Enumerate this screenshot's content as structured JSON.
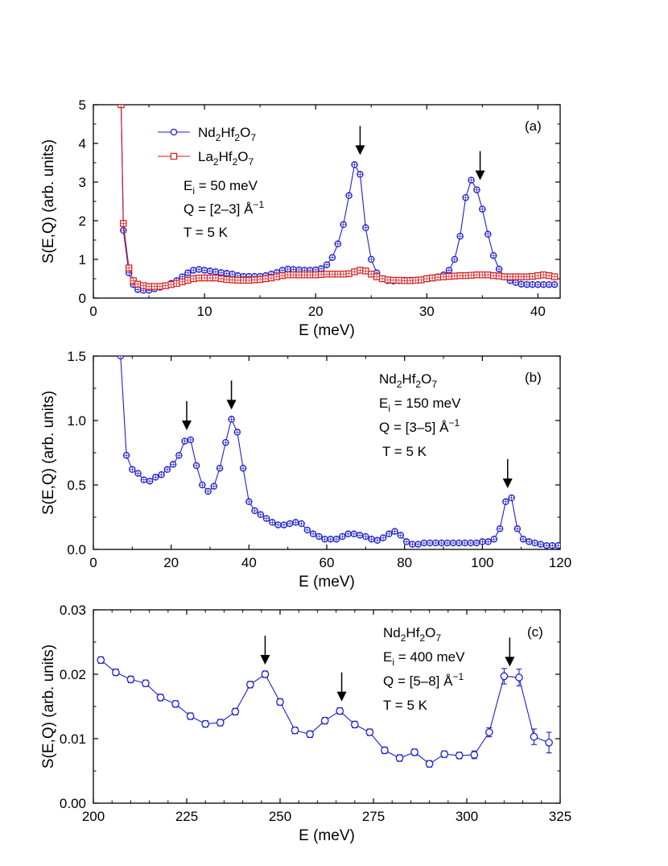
{
  "chart_data": [
    {
      "type": "line",
      "panel_label": "(a)",
      "xlabel": "E (meV)",
      "ylabel": "S(E,Q) (arb. units)",
      "xlim": [
        0,
        42
      ],
      "ylim": [
        0,
        5
      ],
      "xticks": [
        0,
        10,
        20,
        30,
        40
      ],
      "yticks": [
        0,
        1,
        2,
        3,
        4,
        5
      ],
      "xtick_labels": [
        "0",
        "10",
        "20",
        "30",
        "40"
      ],
      "ytick_labels": [
        "0",
        "1",
        "2",
        "3",
        "4",
        "5"
      ],
      "grid": false,
      "legend_position": "top-left",
      "annotation_lines": [
        {
          "base": "E",
          "sub": "i",
          "rest": " = 50 meV"
        },
        {
          "base": "Q = [2–3] Å",
          "sup": "−1"
        },
        {
          "base": "T = 5 K"
        }
      ],
      "arrows_at": [
        24.0,
        34.8
      ],
      "series": [
        {
          "name": "Nd2Hf2O7",
          "name_parts": [
            "Nd",
            "2",
            "Hf",
            "2",
            "O",
            "7"
          ],
          "color": "#1f1fcf",
          "marker": "circle",
          "x": [
            2.5,
            2.7,
            3.2,
            3.6,
            4.0,
            4.5,
            5.0,
            5.5,
            6.0,
            6.5,
            7.0,
            7.5,
            8.0,
            8.5,
            9.0,
            9.5,
            10.0,
            10.5,
            11.0,
            11.5,
            12.0,
            12.5,
            13.0,
            13.5,
            14.0,
            14.5,
            15.0,
            15.5,
            16.0,
            16.5,
            17.0,
            17.5,
            18.0,
            18.5,
            19.0,
            19.5,
            20.0,
            20.5,
            21.0,
            21.5,
            22.0,
            22.5,
            23.0,
            23.5,
            24.0,
            24.5,
            25.0,
            25.5,
            26.0,
            26.5,
            27.0,
            27.5,
            28.0,
            28.5,
            29.0,
            29.5,
            30.0,
            30.5,
            31.0,
            31.5,
            32.0,
            32.5,
            33.0,
            33.5,
            34.0,
            34.5,
            35.0,
            35.5,
            36.0,
            36.5,
            37.0,
            37.5,
            38.0,
            38.5,
            39.0,
            39.5,
            40.0,
            40.5,
            41.0,
            41.5
          ],
          "values": [
            5.0,
            1.75,
            0.65,
            0.35,
            0.22,
            0.2,
            0.2,
            0.24,
            0.28,
            0.32,
            0.38,
            0.45,
            0.55,
            0.65,
            0.72,
            0.74,
            0.72,
            0.7,
            0.68,
            0.66,
            0.64,
            0.62,
            0.58,
            0.56,
            0.56,
            0.56,
            0.56,
            0.58,
            0.62,
            0.66,
            0.72,
            0.75,
            0.74,
            0.73,
            0.72,
            0.72,
            0.73,
            0.76,
            0.86,
            1.05,
            1.4,
            1.9,
            2.65,
            3.45,
            3.2,
            1.82,
            1.0,
            0.65,
            0.5,
            0.45,
            0.44,
            0.45,
            0.46,
            0.46,
            0.46,
            0.47,
            0.5,
            0.52,
            0.55,
            0.6,
            0.72,
            1.0,
            1.6,
            2.6,
            3.05,
            2.8,
            2.3,
            1.65,
            1.1,
            0.75,
            0.55,
            0.45,
            0.4,
            0.36,
            0.35,
            0.35,
            0.35,
            0.35,
            0.35,
            0.35
          ]
        },
        {
          "name": "La2Hf2O7",
          "name_parts": [
            "La",
            "2",
            "Hf",
            "2",
            "O",
            "7"
          ],
          "color": "#d91a1a",
          "marker": "square",
          "x": [
            2.5,
            2.7,
            3.2,
            3.6,
            4.0,
            4.5,
            5.0,
            5.5,
            6.0,
            6.5,
            7.0,
            7.5,
            8.0,
            8.5,
            9.0,
            9.5,
            10.0,
            10.5,
            11.0,
            11.5,
            12.0,
            12.5,
            13.0,
            13.5,
            14.0,
            14.5,
            15.0,
            15.5,
            16.0,
            16.5,
            17.0,
            17.5,
            18.0,
            18.5,
            19.0,
            19.5,
            20.0,
            20.5,
            21.0,
            21.5,
            22.0,
            22.5,
            23.0,
            23.5,
            24.0,
            24.5,
            25.0,
            25.5,
            26.0,
            26.5,
            27.0,
            27.5,
            28.0,
            28.5,
            29.0,
            29.5,
            30.0,
            30.5,
            31.0,
            31.5,
            32.0,
            32.5,
            33.0,
            33.5,
            34.0,
            34.5,
            35.0,
            35.5,
            36.0,
            36.5,
            37.0,
            37.5,
            38.0,
            38.5,
            39.0,
            39.5,
            40.0,
            40.5,
            41.0,
            41.5
          ],
          "values": [
            5.0,
            1.93,
            0.78,
            0.45,
            0.36,
            0.32,
            0.3,
            0.3,
            0.3,
            0.32,
            0.35,
            0.38,
            0.42,
            0.46,
            0.5,
            0.52,
            0.52,
            0.52,
            0.52,
            0.5,
            0.48,
            0.47,
            0.46,
            0.46,
            0.46,
            0.47,
            0.48,
            0.5,
            0.52,
            0.55,
            0.58,
            0.6,
            0.6,
            0.6,
            0.6,
            0.6,
            0.6,
            0.61,
            0.62,
            0.62,
            0.62,
            0.62,
            0.63,
            0.68,
            0.72,
            0.7,
            0.62,
            0.55,
            0.5,
            0.47,
            0.46,
            0.46,
            0.45,
            0.45,
            0.46,
            0.47,
            0.5,
            0.52,
            0.54,
            0.55,
            0.56,
            0.57,
            0.58,
            0.58,
            0.59,
            0.6,
            0.6,
            0.6,
            0.58,
            0.57,
            0.55,
            0.55,
            0.55,
            0.55,
            0.55,
            0.56,
            0.58,
            0.6,
            0.58,
            0.55
          ]
        }
      ]
    },
    {
      "type": "line",
      "panel_label": "(b)",
      "xlabel": "E (meV)",
      "ylabel": "S(E,Q) (arb. units)",
      "xlim": [
        0,
        120
      ],
      "ylim": [
        0,
        1.5
      ],
      "xticks": [
        0,
        20,
        40,
        60,
        80,
        100,
        120
      ],
      "yticks": [
        0,
        0.5,
        1.0,
        1.5
      ],
      "xtick_labels": [
        "0",
        "20",
        "40",
        "60",
        "80",
        "100",
        "120"
      ],
      "ytick_labels": [
        "0.0",
        "0.5",
        "1.0",
        "1.5"
      ],
      "grid": false,
      "annotation_title_parts": [
        "Nd",
        "2",
        "Hf",
        "2",
        "O",
        "7"
      ],
      "annotation_lines": [
        {
          "base": "E",
          "sub": "i",
          "rest": " = 150 meV"
        },
        {
          "base": "Q = [3–5] Å",
          "sup": "−1"
        },
        {
          "base": "T = 5 K"
        }
      ],
      "arrows_at": [
        24.0,
        35.5,
        106.5
      ],
      "series": [
        {
          "name": "Nd2Hf2O7",
          "color": "#1f1fcf",
          "marker": "circle",
          "x": [
            7.0,
            8.5,
            10.0,
            11.5,
            13.0,
            14.5,
            16.0,
            17.5,
            19.0,
            20.5,
            22.0,
            23.5,
            25.0,
            26.5,
            28.0,
            29.5,
            31.0,
            32.5,
            34.0,
            35.5,
            37.0,
            38.5,
            40.0,
            41.5,
            43.0,
            44.5,
            46.0,
            47.5,
            49.0,
            50.5,
            52.0,
            53.5,
            55.0,
            56.5,
            58.0,
            59.5,
            61.0,
            62.5,
            64.0,
            65.5,
            67.0,
            68.5,
            70.0,
            71.5,
            73.0,
            74.5,
            76.0,
            77.5,
            79.0,
            80.5,
            82.0,
            83.5,
            85.0,
            86.5,
            88.0,
            89.5,
            91.0,
            92.5,
            94.0,
            95.5,
            97.0,
            98.5,
            100.0,
            101.5,
            103.0,
            104.5,
            106.0,
            107.5,
            109.0,
            110.5,
            112.0,
            113.5,
            115.0,
            116.5,
            118.0,
            119.5
          ],
          "values": [
            1.5,
            0.73,
            0.62,
            0.59,
            0.54,
            0.53,
            0.56,
            0.58,
            0.62,
            0.66,
            0.73,
            0.84,
            0.85,
            0.65,
            0.5,
            0.45,
            0.49,
            0.63,
            0.83,
            1.01,
            0.91,
            0.63,
            0.37,
            0.3,
            0.27,
            0.24,
            0.21,
            0.19,
            0.19,
            0.2,
            0.21,
            0.2,
            0.15,
            0.12,
            0.1,
            0.08,
            0.08,
            0.08,
            0.1,
            0.12,
            0.12,
            0.11,
            0.1,
            0.08,
            0.07,
            0.09,
            0.12,
            0.14,
            0.11,
            0.06,
            0.04,
            0.04,
            0.05,
            0.05,
            0.05,
            0.05,
            0.05,
            0.05,
            0.05,
            0.05,
            0.05,
            0.05,
            0.06,
            0.06,
            0.08,
            0.16,
            0.37,
            0.4,
            0.16,
            0.08,
            0.06,
            0.05,
            0.04,
            0.03,
            0.03,
            0.03
          ]
        }
      ]
    },
    {
      "type": "line",
      "panel_label": "(c)",
      "xlabel": "E (meV)",
      "ylabel": "S(E,Q) (arb. units)",
      "xlim": [
        200,
        325
      ],
      "ylim": [
        0,
        0.03
      ],
      "xticks": [
        200,
        225,
        250,
        275,
        300,
        325
      ],
      "yticks": [
        0,
        0.01,
        0.02,
        0.03
      ],
      "xtick_labels": [
        "200",
        "225",
        "250",
        "275",
        "300",
        "325"
      ],
      "ytick_labels": [
        "0.00",
        "0.01",
        "0.02",
        "0.03"
      ],
      "grid": false,
      "annotation_title_parts": [
        "Nd",
        "2",
        "Hf",
        "2",
        "O",
        "7"
      ],
      "annotation_lines": [
        {
          "base": "E",
          "sub": "i",
          "rest": " = 400 meV"
        },
        {
          "base": "Q = [5–8] Å",
          "sup": "−1"
        },
        {
          "base": "T = 5 K"
        }
      ],
      "arrows_at": [
        246.0,
        266.5,
        311.5
      ],
      "series": [
        {
          "name": "Nd2Hf2O7",
          "color": "#1f1fcf",
          "marker": "circle",
          "x": [
            202,
            206,
            210,
            214,
            218,
            222,
            226,
            230,
            234,
            238,
            242,
            246,
            250,
            254,
            258,
            262,
            266,
            270,
            274,
            278,
            282,
            286,
            290,
            294,
            298,
            302,
            306,
            310,
            314,
            318,
            322
          ],
          "values": [
            0.0222,
            0.0203,
            0.0192,
            0.0186,
            0.0164,
            0.0154,
            0.0135,
            0.0123,
            0.0125,
            0.0142,
            0.0184,
            0.02,
            0.0157,
            0.0113,
            0.0107,
            0.0128,
            0.0143,
            0.0122,
            0.011,
            0.0082,
            0.007,
            0.0079,
            0.0061,
            0.0076,
            0.0074,
            0.0075,
            0.011,
            0.0197,
            0.0195,
            0.0103,
            0.0094
          ],
          "errors": [
            0.0005,
            0.0005,
            0.0005,
            0.0005,
            0.0005,
            0.0005,
            0.0005,
            0.0005,
            0.0005,
            0.0005,
            0.0005,
            0.0005,
            0.0005,
            0.0005,
            0.0005,
            0.0005,
            0.0005,
            0.0005,
            0.0005,
            0.0005,
            0.0005,
            0.0005,
            0.0005,
            0.0005,
            0.0005,
            0.0006,
            0.0007,
            0.0012,
            0.0013,
            0.0012,
            0.0016
          ]
        }
      ]
    }
  ]
}
